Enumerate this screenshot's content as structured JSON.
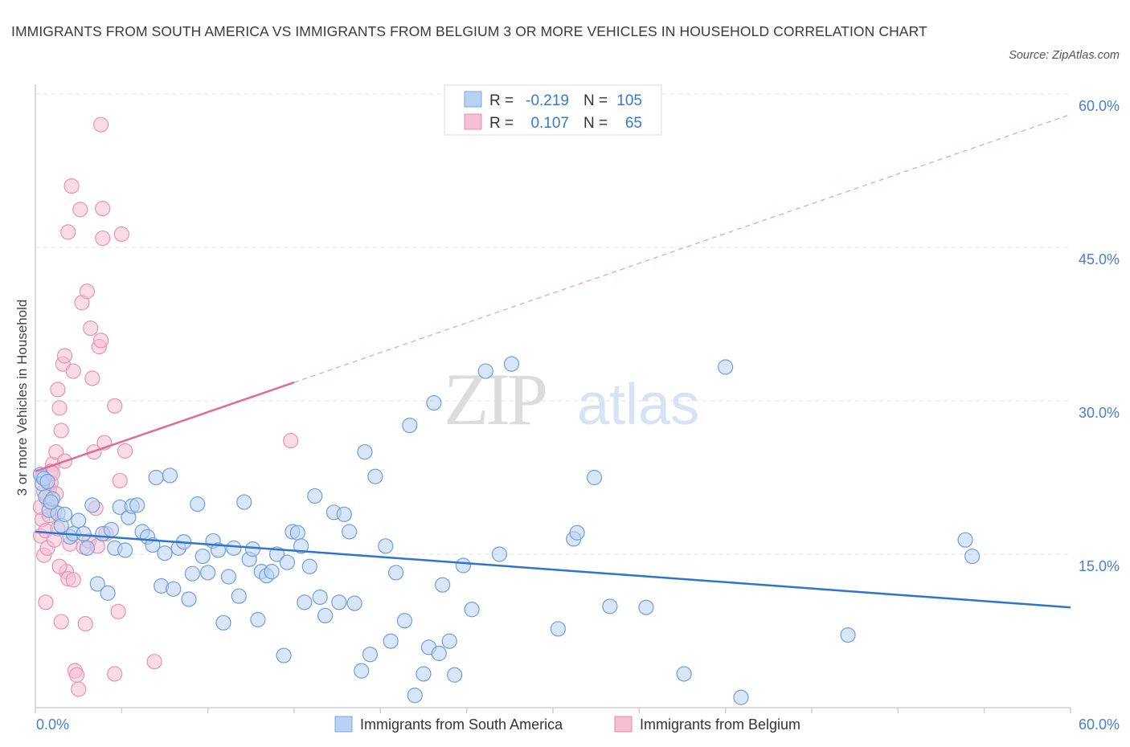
{
  "title": "IMMIGRANTS FROM SOUTH AMERICA VS IMMIGRANTS FROM BELGIUM 3 OR MORE VEHICLES IN HOUSEHOLD CORRELATION CHART",
  "source": "Source: ZipAtlas.com",
  "watermark": {
    "zip": "ZIP",
    "atlas": "atlas"
  },
  "colors": {
    "blue": "#2e75cc",
    "blue_fill": "#b9d2f3",
    "pink": "#e26a93",
    "pink_fill": "#f5c0d3",
    "axis_text": "#4a7fcc"
  },
  "legend": {
    "rows": [
      {
        "r_label": "R =",
        "r_value": "-0.219",
        "n_label": "N =",
        "n_value": "105"
      },
      {
        "r_label": "R =",
        "r_value": "0.107",
        "n_label": "N =",
        "n_value": "65"
      }
    ]
  },
  "chart_data": {
    "type": "scatter",
    "ylabel": "3 or more Vehicles in Household",
    "xlim": [
      0,
      60
    ],
    "ylim": [
      0,
      60
    ],
    "x_tick_labels": [
      "0.0%",
      "60.0%"
    ],
    "y_ticks": [
      15,
      30,
      45,
      60
    ],
    "y_tick_labels": [
      "15.0%",
      "30.0%",
      "45.0%",
      "60.0%"
    ],
    "series": [
      {
        "name": "Immigrants from South America",
        "color": "#2e75cc",
        "trend": {
          "x": [
            0,
            60
          ],
          "y": [
            17.2,
            9.8
          ]
        },
        "points": [
          [
            0.3,
            22.8
          ],
          [
            0.4,
            21.9
          ],
          [
            0.5,
            22.4
          ],
          [
            0.6,
            20.6
          ],
          [
            0.7,
            22.1
          ],
          [
            0.8,
            19.3
          ],
          [
            1.0,
            20.4
          ],
          [
            1.3,
            19.0
          ],
          [
            1.5,
            17.8
          ],
          [
            1.7,
            18.9
          ],
          [
            2.0,
            16.7
          ],
          [
            2.2,
            17.0
          ],
          [
            2.5,
            18.3
          ],
          [
            2.8,
            17.0
          ],
          [
            3.0,
            15.6
          ],
          [
            3.3,
            19.8
          ],
          [
            3.6,
            12.1
          ],
          [
            3.9,
            17.0
          ],
          [
            4.2,
            11.2
          ],
          [
            4.4,
            17.4
          ],
          [
            4.6,
            15.6
          ],
          [
            4.9,
            19.6
          ],
          [
            5.2,
            15.4
          ],
          [
            5.4,
            18.6
          ],
          [
            5.6,
            19.7
          ],
          [
            5.9,
            19.8
          ],
          [
            6.2,
            17.2
          ],
          [
            6.5,
            16.7
          ],
          [
            6.8,
            15.9
          ],
          [
            7.0,
            22.5
          ],
          [
            7.3,
            11.9
          ],
          [
            7.5,
            15.1
          ],
          [
            7.8,
            22.7
          ],
          [
            8.0,
            11.6
          ],
          [
            8.3,
            15.6
          ],
          [
            8.6,
            16.2
          ],
          [
            8.9,
            10.6
          ],
          [
            9.1,
            13.1
          ],
          [
            9.4,
            19.9
          ],
          [
            9.7,
            14.8
          ],
          [
            10.0,
            13.2
          ],
          [
            10.3,
            16.3
          ],
          [
            10.6,
            15.4
          ],
          [
            10.9,
            8.3
          ],
          [
            11.2,
            12.8
          ],
          [
            11.5,
            15.6
          ],
          [
            11.8,
            10.9
          ],
          [
            12.1,
            20.1
          ],
          [
            12.4,
            14.5
          ],
          [
            12.6,
            15.5
          ],
          [
            12.9,
            8.6
          ],
          [
            13.1,
            13.3
          ],
          [
            13.4,
            12.9
          ],
          [
            13.7,
            13.3
          ],
          [
            14.0,
            15.0
          ],
          [
            14.4,
            5.1
          ],
          [
            14.6,
            14.2
          ],
          [
            14.9,
            17.2
          ],
          [
            15.2,
            17.1
          ],
          [
            15.4,
            15.8
          ],
          [
            15.6,
            10.3
          ],
          [
            15.9,
            13.8
          ],
          [
            16.2,
            20.7
          ],
          [
            16.5,
            10.8
          ],
          [
            16.8,
            9.0
          ],
          [
            17.3,
            19.1
          ],
          [
            17.6,
            10.3
          ],
          [
            17.9,
            18.9
          ],
          [
            18.2,
            17.2
          ],
          [
            18.5,
            10.2
          ],
          [
            18.9,
            3.6
          ],
          [
            19.1,
            25.0
          ],
          [
            19.4,
            5.2
          ],
          [
            19.7,
            22.6
          ],
          [
            20.3,
            15.8
          ],
          [
            20.6,
            6.5
          ],
          [
            20.9,
            13.2
          ],
          [
            21.4,
            8.5
          ],
          [
            21.7,
            27.6
          ],
          [
            22.0,
            1.2
          ],
          [
            22.5,
            3.3
          ],
          [
            22.8,
            5.9
          ],
          [
            23.1,
            29.8
          ],
          [
            23.4,
            5.3
          ],
          [
            23.6,
            12.0
          ],
          [
            24.0,
            6.5
          ],
          [
            24.3,
            3.2
          ],
          [
            24.8,
            13.9
          ],
          [
            25.3,
            9.6
          ],
          [
            26.1,
            32.9
          ],
          [
            26.9,
            15.0
          ],
          [
            27.6,
            33.6
          ],
          [
            30.3,
            7.7
          ],
          [
            31.2,
            16.5
          ],
          [
            31.4,
            17.1
          ],
          [
            32.4,
            22.5
          ],
          [
            33.3,
            9.9
          ],
          [
            35.4,
            9.8
          ],
          [
            37.6,
            3.3
          ],
          [
            40.0,
            33.3
          ],
          [
            40.9,
            1.0
          ],
          [
            47.1,
            7.1
          ],
          [
            53.9,
            16.4
          ],
          [
            54.3,
            14.8
          ],
          [
            0.9,
            20.1
          ]
        ]
      },
      {
        "name": "Immigrants from Belgium",
        "color": "#e26a93",
        "trend": {
          "x": [
            0,
            15
          ],
          "y": [
            23.1,
            31.8
          ]
        },
        "trend_dashed": {
          "x": [
            15,
            60
          ],
          "y": [
            31.8,
            58.0
          ]
        },
        "points": [
          [
            0.3,
            16.8
          ],
          [
            0.4,
            18.4
          ],
          [
            0.5,
            14.9
          ],
          [
            0.6,
            10.3
          ],
          [
            0.7,
            20.3
          ],
          [
            0.8,
            21.4
          ],
          [
            0.9,
            22.0
          ],
          [
            1.0,
            23.8
          ],
          [
            1.1,
            19.2
          ],
          [
            1.2,
            25.0
          ],
          [
            1.3,
            31.1
          ],
          [
            1.4,
            29.3
          ],
          [
            1.5,
            27.1
          ],
          [
            1.6,
            33.6
          ],
          [
            1.7,
            34.4
          ],
          [
            1.8,
            13.3
          ],
          [
            1.9,
            46.5
          ],
          [
            2.0,
            16.0
          ],
          [
            2.1,
            51.0
          ],
          [
            2.2,
            32.9
          ],
          [
            2.3,
            3.6
          ],
          [
            2.4,
            3.2
          ],
          [
            2.5,
            1.8
          ],
          [
            2.6,
            48.7
          ],
          [
            2.7,
            39.6
          ],
          [
            2.8,
            15.7
          ],
          [
            2.9,
            8.2
          ],
          [
            3.0,
            40.7
          ],
          [
            3.1,
            16.3
          ],
          [
            3.2,
            37.1
          ],
          [
            3.3,
            32.2
          ],
          [
            3.4,
            25.0
          ],
          [
            3.5,
            19.5
          ],
          [
            3.6,
            15.8
          ],
          [
            3.7,
            35.3
          ],
          [
            3.8,
            35.9
          ],
          [
            3.9,
            45.9
          ],
          [
            4.0,
            25.9
          ],
          [
            4.1,
            17.0
          ],
          [
            3.8,
            57.0
          ],
          [
            3.9,
            48.8
          ],
          [
            4.6,
            29.5
          ],
          [
            4.8,
            9.4
          ],
          [
            4.9,
            22.2
          ],
          [
            5.0,
            46.3
          ],
          [
            5.2,
            25.1
          ],
          [
            6.9,
            4.5
          ],
          [
            0.3,
            19.6
          ],
          [
            0.4,
            22.5
          ],
          [
            0.5,
            21.1
          ],
          [
            0.6,
            17.3
          ],
          [
            0.7,
            15.6
          ],
          [
            0.8,
            18.8
          ],
          [
            0.9,
            23.1
          ],
          [
            1.0,
            22.9
          ],
          [
            1.1,
            16.4
          ],
          [
            1.2,
            20.9
          ],
          [
            1.3,
            17.5
          ],
          [
            1.4,
            13.8
          ],
          [
            1.5,
            8.4
          ],
          [
            1.9,
            12.6
          ],
          [
            2.2,
            12.5
          ],
          [
            4.6,
            3.3
          ],
          [
            14.8,
            26.1
          ],
          [
            1.7,
            24.1
          ]
        ]
      }
    ]
  }
}
